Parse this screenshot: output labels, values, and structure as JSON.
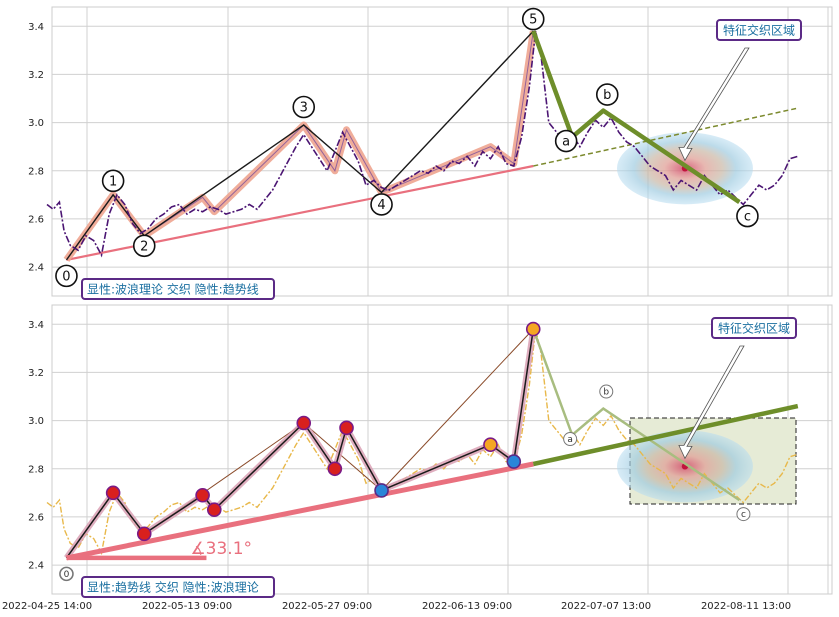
{
  "chart_data": [
    {
      "type": "line",
      "legend_text": "显性:波浪理论 交织 隐性:趋势线",
      "zone_label": "特征交织区域",
      "yticks": [
        "2.4",
        "2.6",
        "2.8",
        "3.0",
        "3.2",
        "3.4"
      ],
      "ylim": [
        2.28,
        3.48
      ],
      "xlim": [
        0,
        100
      ],
      "price": [
        [
          0.0,
          2.66
        ],
        [
          0.8,
          2.64
        ],
        [
          1.6,
          2.67
        ],
        [
          2.2,
          2.55
        ],
        [
          3.0,
          2.49
        ],
        [
          4.0,
          2.47
        ],
        [
          5.0,
          2.53
        ],
        [
          6.0,
          2.51
        ],
        [
          7.0,
          2.45
        ],
        [
          8.0,
          2.62
        ],
        [
          9.0,
          2.7
        ],
        [
          10.0,
          2.66
        ],
        [
          11.0,
          2.58
        ],
        [
          12.0,
          2.54
        ],
        [
          13.0,
          2.56
        ],
        [
          14.0,
          2.6
        ],
        [
          15.0,
          2.62
        ],
        [
          16.0,
          2.65
        ],
        [
          17.0,
          2.66
        ],
        [
          18.0,
          2.62
        ],
        [
          19.0,
          2.64
        ],
        [
          20.0,
          2.63
        ],
        [
          21.0,
          2.65
        ],
        [
          22.0,
          2.64
        ],
        [
          23.0,
          2.62
        ],
        [
          24.0,
          2.63
        ],
        [
          25.0,
          2.64
        ],
        [
          26.0,
          2.66
        ],
        [
          27.0,
          2.64
        ],
        [
          28.0,
          2.68
        ],
        [
          29.0,
          2.72
        ],
        [
          30.0,
          2.78
        ],
        [
          31.0,
          2.84
        ],
        [
          32.0,
          2.9
        ],
        [
          33.0,
          2.95
        ],
        [
          34.0,
          2.9
        ],
        [
          35.0,
          2.85
        ],
        [
          36.0,
          2.8
        ],
        [
          37.0,
          2.88
        ],
        [
          38.0,
          2.96
        ],
        [
          39.0,
          2.9
        ],
        [
          40.0,
          2.84
        ],
        [
          41.0,
          2.74
        ],
        [
          42.0,
          2.76
        ],
        [
          43.0,
          2.73
        ],
        [
          44.0,
          2.72
        ],
        [
          45.0,
          2.74
        ],
        [
          46.0,
          2.76
        ],
        [
          47.0,
          2.78
        ],
        [
          48.0,
          2.8
        ],
        [
          49.0,
          2.79
        ],
        [
          50.0,
          2.82
        ],
        [
          51.0,
          2.8
        ],
        [
          52.0,
          2.84
        ],
        [
          53.0,
          2.83
        ],
        [
          54.0,
          2.86
        ],
        [
          55.0,
          2.82
        ],
        [
          56.0,
          2.88
        ],
        [
          57.0,
          2.85
        ],
        [
          58.0,
          2.9
        ],
        [
          59.0,
          2.83
        ],
        [
          60.0,
          2.82
        ],
        [
          61.0,
          2.94
        ],
        [
          62.0,
          3.15
        ],
        [
          62.8,
          3.38
        ],
        [
          63.5,
          3.28
        ],
        [
          64.5,
          3.0
        ],
        [
          65.5,
          2.96
        ],
        [
          66.5,
          2.92
        ],
        [
          67.5,
          2.95
        ],
        [
          68.5,
          2.9
        ],
        [
          69.5,
          2.96
        ],
        [
          70.5,
          3.01
        ],
        [
          71.5,
          2.98
        ],
        [
          72.5,
          3.02
        ],
        [
          73.5,
          2.96
        ],
        [
          74.5,
          2.92
        ],
        [
          75.5,
          2.9
        ],
        [
          76.5,
          2.86
        ],
        [
          77.5,
          2.82
        ],
        [
          78.5,
          2.8
        ],
        [
          79.5,
          2.78
        ],
        [
          80.5,
          2.72
        ],
        [
          81.5,
          2.76
        ],
        [
          82.5,
          2.74
        ],
        [
          83.5,
          2.72
        ],
        [
          84.5,
          2.78
        ],
        [
          85.5,
          2.74
        ],
        [
          86.5,
          2.7
        ],
        [
          87.5,
          2.72
        ],
        [
          88.5,
          2.69
        ],
        [
          89.5,
          2.66
        ],
        [
          90.5,
          2.7
        ],
        [
          91.5,
          2.74
        ],
        [
          92.5,
          2.72
        ],
        [
          93.5,
          2.74
        ],
        [
          94.5,
          2.78
        ],
        [
          95.5,
          2.85
        ],
        [
          96.5,
          2.86
        ]
      ],
      "waves": [
        {
          "label": "0",
          "x": 2.5,
          "y": 2.43
        },
        {
          "label": "1",
          "x": 8.5,
          "y": 2.7
        },
        {
          "label": "2",
          "x": 12.5,
          "y": 2.53
        },
        {
          "label": "",
          "x": 20.0,
          "y": 2.69
        },
        {
          "label": "",
          "x": 21.5,
          "y": 2.63
        },
        {
          "label": "3",
          "x": 33.0,
          "y": 2.99
        },
        {
          "label": "",
          "x": 37.0,
          "y": 2.8
        },
        {
          "label": "",
          "x": 38.5,
          "y": 2.97
        },
        {
          "label": "4",
          "x": 43.0,
          "y": 2.71
        },
        {
          "label": "",
          "x": 57.0,
          "y": 2.9
        },
        {
          "label": "",
          "x": 60.0,
          "y": 2.83
        },
        {
          "label": "5",
          "x": 62.5,
          "y": 3.38
        }
      ],
      "correction": [
        {
          "label": "",
          "x": 62.5,
          "y": 3.38
        },
        {
          "label": "a",
          "x": 67.5,
          "y": 2.94
        },
        {
          "label": "b",
          "x": 71.5,
          "y": 3.05
        },
        {
          "label": "c",
          "x": 89.0,
          "y": 2.67
        }
      ],
      "trendline": [
        [
          2.5,
          2.43
        ],
        [
          62.5,
          2.82
        ]
      ],
      "trend_ext": [
        [
          62.5,
          2.82
        ],
        [
          96.5,
          3.06
        ]
      ],
      "zone": {
        "x": 82.0,
        "y": 2.81
      }
    },
    {
      "type": "line",
      "legend_text": "显性:趋势线 交织 隐性:波浪理论",
      "zone_label": "特征交织区域",
      "angle_label": "∡33.1°",
      "yticks": [
        "2.4",
        "2.6",
        "2.8",
        "3.0",
        "3.2",
        "3.4"
      ],
      "ylim": [
        2.28,
        3.48
      ],
      "xlim": [
        0,
        100
      ],
      "xticks": [
        "2022-04-25 14:00",
        "2022-05-13 09:00",
        "2022-05-27 09:00",
        "2022-06-13 09:00",
        "2022-07-07 13:00",
        "2022-08-11 13:00"
      ]
    }
  ]
}
